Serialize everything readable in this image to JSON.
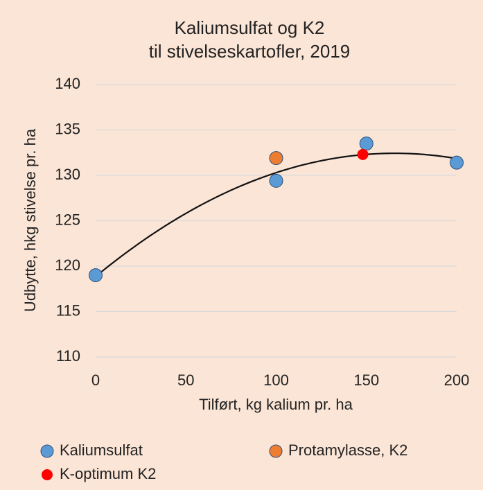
{
  "chart_data": {
    "type": "scatter",
    "title": [
      "Kaliumsulfat og K2",
      "til stivelseskartofler, 2019"
    ],
    "x_label": "Tilført, kg kalium pr. ha",
    "y_label": "Udbytte, hkg stivelse pr. ha",
    "series": [
      {
        "name": "Kaliumsulfat",
        "color": "#5b9bd5",
        "x": [
          0,
          100,
          150,
          200
        ],
        "values": [
          119,
          129.4,
          133.5,
          131.4
        ]
      },
      {
        "name": "Protamylasse, K2",
        "color": "#ed7d31",
        "x": [
          100
        ],
        "values": [
          131.9
        ]
      },
      {
        "name": "K-optimum K2",
        "color": "#ff0000",
        "x": [
          148
        ],
        "values": [
          132.3
        ]
      }
    ],
    "trendline": "polynomial",
    "xlim": [
      0,
      200
    ],
    "xticks": [
      0,
      50,
      100,
      150,
      200
    ],
    "ylim": [
      110,
      140
    ],
    "yticks": [
      110,
      115,
      120,
      125,
      130,
      135,
      140
    ],
    "grid": true,
    "legend": "bottom"
  }
}
